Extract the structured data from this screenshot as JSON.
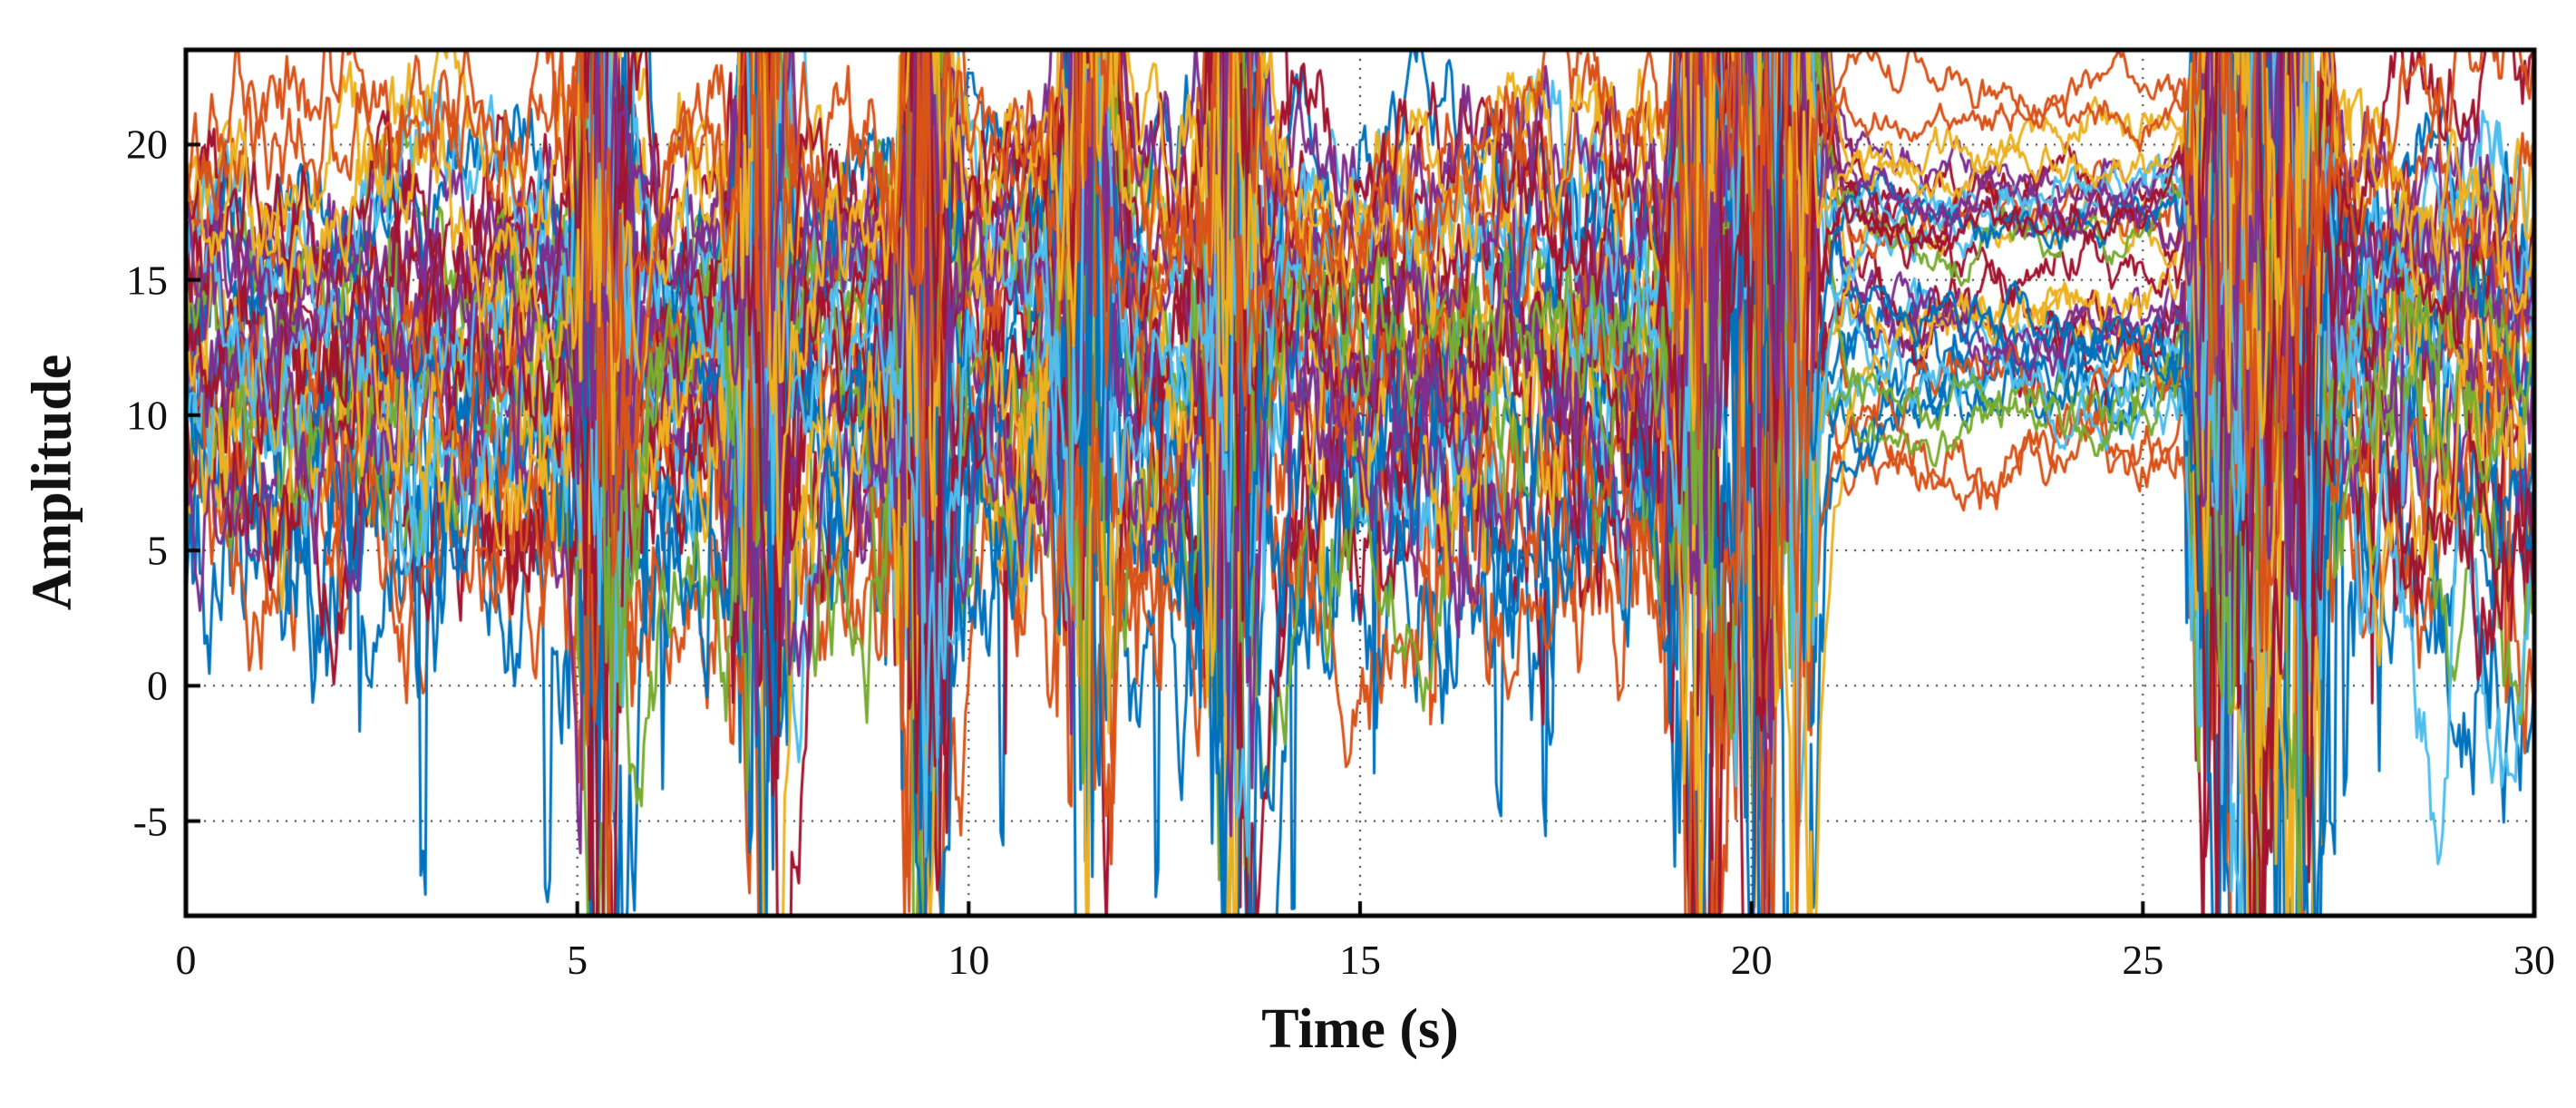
{
  "figure": {
    "background": "#ffffff",
    "frame_color": "#000000"
  },
  "chart_data": {
    "type": "line",
    "title": "",
    "xlabel": "Time (s)",
    "ylabel": "Amplitude",
    "xlim": [
      0,
      30
    ],
    "ylim": [
      -8.5,
      23.5
    ],
    "xticks": [
      0,
      5,
      10,
      15,
      20,
      25,
      30
    ],
    "yticks": [
      -5,
      0,
      5,
      10,
      15,
      20
    ],
    "grid": true,
    "grid_style": "dotted",
    "legend": "none",
    "palette": [
      "#0072BD",
      "#D95319",
      "#EDB120",
      "#7E2F8E",
      "#77AC30",
      "#4DBEEE",
      "#A2142F"
    ],
    "sample_step": 0.03,
    "quiet_interval": [
      20.85,
      25.55
    ],
    "burst_times": [
      5.3,
      7.35,
      9.4,
      11.5,
      13.35,
      19.35,
      20.1,
      20.55,
      25.95,
      26.45,
      27.0
    ],
    "burst_width": 0.22,
    "series": [
      {
        "seed": 1,
        "color": 0,
        "base": 5.2,
        "noise": 3.2,
        "quiet": 11.2,
        "down": 7,
        "up": 0.15,
        "tail": 0
      },
      {
        "seed": 2,
        "color": 1,
        "base": 4.8,
        "noise": 2.4,
        "quiet": 8.0,
        "down": 3,
        "up": 0.2,
        "tail": 0
      },
      {
        "seed": 3,
        "color": 0,
        "base": 6.5,
        "noise": 3.0,
        "quiet": 11.8,
        "down": 8,
        "up": 0.2,
        "tail": 0
      },
      {
        "seed": 4,
        "color": 6,
        "base": 7.5,
        "noise": 2.6,
        "quiet": 12.5,
        "down": 6,
        "up": 0.3,
        "tail": 0
      },
      {
        "seed": 5,
        "color": 1,
        "base": 6.0,
        "noise": 2.2,
        "quiet": 9.0,
        "down": 4,
        "up": 0.25,
        "tail": 0
      },
      {
        "seed": 6,
        "color": 0,
        "base": 8.2,
        "noise": 2.8,
        "quiet": 11.0,
        "down": 6,
        "up": 0.3,
        "tail": 0
      },
      {
        "seed": 7,
        "color": 4,
        "base": 7.0,
        "noise": 2.0,
        "quiet": 10.5,
        "down": 3,
        "up": 0.3,
        "tail": -7
      },
      {
        "seed": 8,
        "color": 5,
        "base": 8.8,
        "noise": 2.2,
        "quiet": 12.2,
        "down": 3,
        "up": 0.3,
        "tail": -13
      },
      {
        "seed": 9,
        "color": 2,
        "base": 9.5,
        "noise": 2.4,
        "quiet": 13.0,
        "down": 3,
        "up": 0.35,
        "tail": 0
      },
      {
        "seed": 10,
        "color": 6,
        "base": 9.0,
        "noise": 2.4,
        "quiet": 12.0,
        "down": 5,
        "up": 0.3,
        "tail": -4
      },
      {
        "seed": 11,
        "color": 3,
        "base": 10.0,
        "noise": 2.2,
        "quiet": 12.8,
        "down": 3,
        "up": 0.35,
        "tail": 0
      },
      {
        "seed": 12,
        "color": 0,
        "base": 10.5,
        "noise": 2.3,
        "quiet": 11.5,
        "down": 4,
        "up": 0.3,
        "tail": 0
      },
      {
        "seed": 13,
        "color": 1,
        "base": 11.0,
        "noise": 2.2,
        "quiet": 12.3,
        "down": 3,
        "up": 0.4,
        "tail": 0
      },
      {
        "seed": 14,
        "color": 2,
        "base": 11.5,
        "noise": 2.4,
        "quiet": 13.2,
        "down": 2,
        "up": 0.45,
        "tail": 0
      },
      {
        "seed": 15,
        "color": 5,
        "base": 11.0,
        "noise": 2.0,
        "quiet": 12.0,
        "down": 2,
        "up": 0.4,
        "tail": 0
      },
      {
        "seed": 16,
        "color": 6,
        "base": 12.0,
        "noise": 2.2,
        "quiet": 15.8,
        "down": 3,
        "up": 0.4,
        "tail": 0
      },
      {
        "seed": 17,
        "color": 4,
        "base": 12.5,
        "noise": 2.0,
        "quiet": 11.0,
        "down": 2,
        "up": 0.4,
        "tail": 0
      },
      {
        "seed": 18,
        "color": 3,
        "base": 12.0,
        "noise": 2.0,
        "quiet": 13.5,
        "down": 2,
        "up": 0.45,
        "tail": 0
      },
      {
        "seed": 19,
        "color": 0,
        "base": 13.0,
        "noise": 2.0,
        "quiet": 12.5,
        "down": 2,
        "up": 0.4,
        "tail": 0
      },
      {
        "seed": 20,
        "color": 2,
        "base": 13.5,
        "noise": 2.2,
        "quiet": 17.0,
        "down": 1,
        "up": 0.5,
        "tail": 0
      },
      {
        "seed": 21,
        "color": 6,
        "base": 14.0,
        "noise": 2.0,
        "quiet": 17.5,
        "down": 1,
        "up": 0.5,
        "tail": 0
      },
      {
        "seed": 22,
        "color": 1,
        "base": 14.5,
        "noise": 1.8,
        "quiet": 18.0,
        "down": 1,
        "up": 0.5,
        "tail": 0
      },
      {
        "seed": 23,
        "color": 3,
        "base": 15.0,
        "noise": 1.8,
        "quiet": 17.2,
        "down": 1,
        "up": 0.5,
        "tail": 0
      },
      {
        "seed": 24,
        "color": 5,
        "base": 15.5,
        "noise": 1.8,
        "quiet": 16.5,
        "down": 1,
        "up": 0.5,
        "tail": 0
      },
      {
        "seed": 25,
        "color": 4,
        "base": 15.0,
        "noise": 1.6,
        "quiet": 17.8,
        "down": 1,
        "up": 0.45,
        "tail": 0
      },
      {
        "seed": 26,
        "color": 6,
        "base": 16.0,
        "noise": 1.8,
        "quiet": 18.2,
        "down": 1,
        "up": 0.5,
        "tail": 0
      },
      {
        "seed": 27,
        "color": 0,
        "base": 16.5,
        "noise": 1.6,
        "quiet": 17.0,
        "down": 1,
        "up": 0.45,
        "tail": 0
      },
      {
        "seed": 28,
        "color": 3,
        "base": 16.8,
        "noise": 1.6,
        "quiet": 18.8,
        "down": 1,
        "up": 0.5,
        "tail": 0
      },
      {
        "seed": 29,
        "color": 5,
        "base": 17.2,
        "noise": 1.6,
        "quiet": 17.6,
        "down": 1,
        "up": 0.5,
        "tail": 0
      },
      {
        "seed": 30,
        "color": 2,
        "base": 17.8,
        "noise": 1.6,
        "quiet": 19.5,
        "down": 0,
        "up": 0.55,
        "tail": 0
      },
      {
        "seed": 31,
        "color": 1,
        "base": 18.2,
        "noise": 1.5,
        "quiet": 20.3,
        "down": 0,
        "up": 0.5,
        "tail": 0
      },
      {
        "seed": 32,
        "color": 6,
        "base": 17.5,
        "noise": 1.5,
        "quiet": 18.5,
        "down": 0,
        "up": 0.5,
        "tail": 0
      },
      {
        "seed": 33,
        "color": 3,
        "base": 17.0,
        "noise": 1.5,
        "quiet": 18.0,
        "down": 0,
        "up": 0.5,
        "tail": 0
      },
      {
        "seed": 34,
        "color": 2,
        "base": 18.5,
        "noise": 1.4,
        "quiet": 19.0,
        "down": 0,
        "up": 0.5,
        "tail": 0
      },
      {
        "seed": 35,
        "color": 1,
        "base": 19.0,
        "noise": 1.4,
        "quiet": 21.0,
        "down": 0,
        "up": 0.45,
        "tail": 0
      }
    ]
  }
}
